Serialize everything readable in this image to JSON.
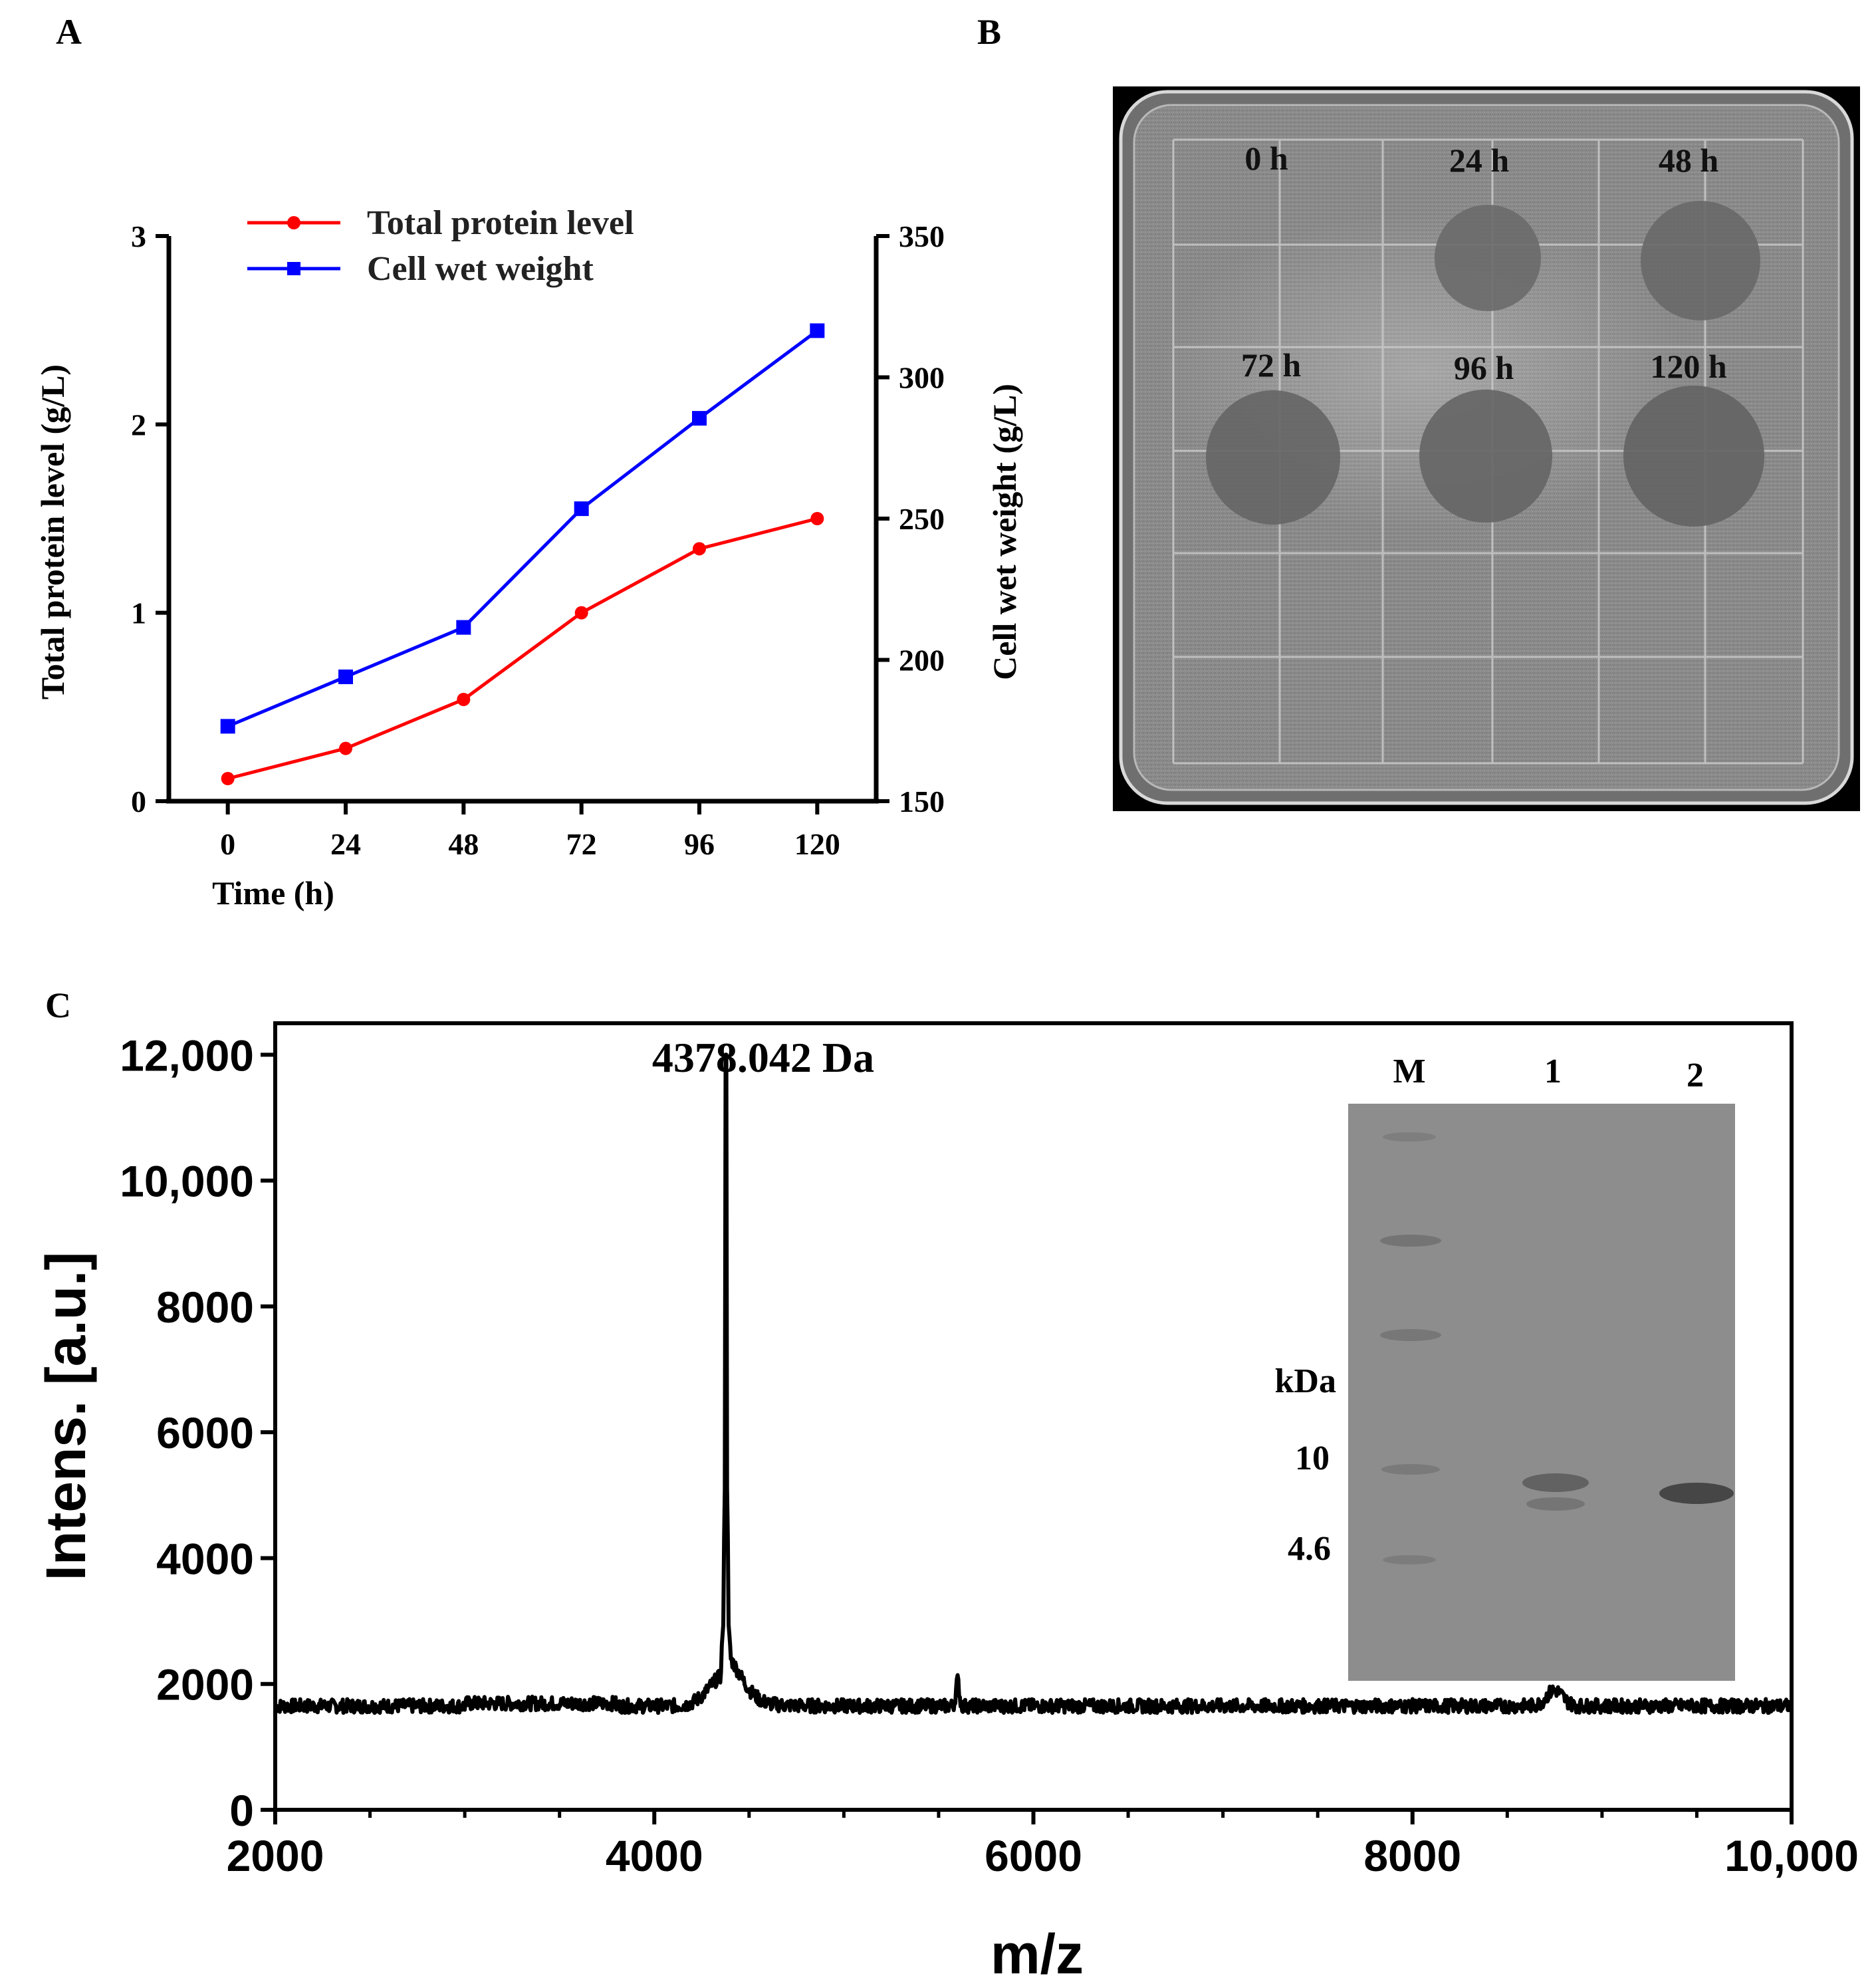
{
  "panels": {
    "a": "A",
    "b": "B",
    "c": "C"
  },
  "chart_data": [
    {
      "type": "line",
      "panel": "A",
      "x": [
        0,
        24,
        48,
        72,
        96,
        120
      ],
      "xlabel": "Time (h)",
      "xlim": [
        -12,
        132
      ],
      "series": [
        {
          "name": "Total protein level",
          "axis": "left",
          "color": "#ff0000",
          "marker": "circle",
          "values": [
            0.12,
            0.28,
            0.54,
            1.0,
            1.34,
            1.5
          ]
        },
        {
          "name": "Cell wet weight",
          "axis": "right",
          "color": "#0000ff",
          "marker": "square",
          "values": [
            176.5,
            194,
            211.5,
            253.5,
            285.5,
            316.5
          ]
        }
      ],
      "ylabel_left": "Total protein level (g/L)",
      "ylim_left": [
        0,
        3
      ],
      "yticks_left": [
        "0",
        "1",
        "2",
        "3"
      ],
      "ylabel_right": "Cell wet weight (g/L)",
      "ylim_right": [
        150,
        350
      ],
      "yticks_right": [
        "150",
        "200",
        "250",
        "300",
        "350"
      ],
      "xticks": [
        "0",
        "24",
        "48",
        "72",
        "96",
        "120"
      ],
      "legend": "top-left"
    },
    {
      "type": "line",
      "panel": "C",
      "xlabel": "m/z",
      "ylabel": "Intens. [a.u.]",
      "xlim": [
        2000,
        10000
      ],
      "ylim": [
        0,
        12000
      ],
      "xticks": [
        "2000",
        "4000",
        "6000",
        "8000",
        "10,000"
      ],
      "yticks": [
        "0",
        "2000",
        "4000",
        "6000",
        "8000",
        "10,000",
        "12,000"
      ],
      "baseline": 1650,
      "peaks": [
        {
          "mz": 4378.042,
          "intensity": 12000
        },
        {
          "mz": 5600,
          "intensity": 2050
        },
        {
          "mz": 8750,
          "intensity": 1900
        }
      ],
      "annotation": "4378.042 Da"
    }
  ],
  "plate": {
    "labels": [
      "0 h",
      "24 h",
      "48 h",
      "72 h",
      "96 h",
      "120 h"
    ]
  },
  "gel": {
    "lanes": [
      "M",
      "1",
      "2"
    ],
    "unit": "kDa",
    "markers": [
      "10",
      "4.6"
    ]
  },
  "colors": {
    "protein": "#ff0000",
    "weight": "#0000ff"
  }
}
